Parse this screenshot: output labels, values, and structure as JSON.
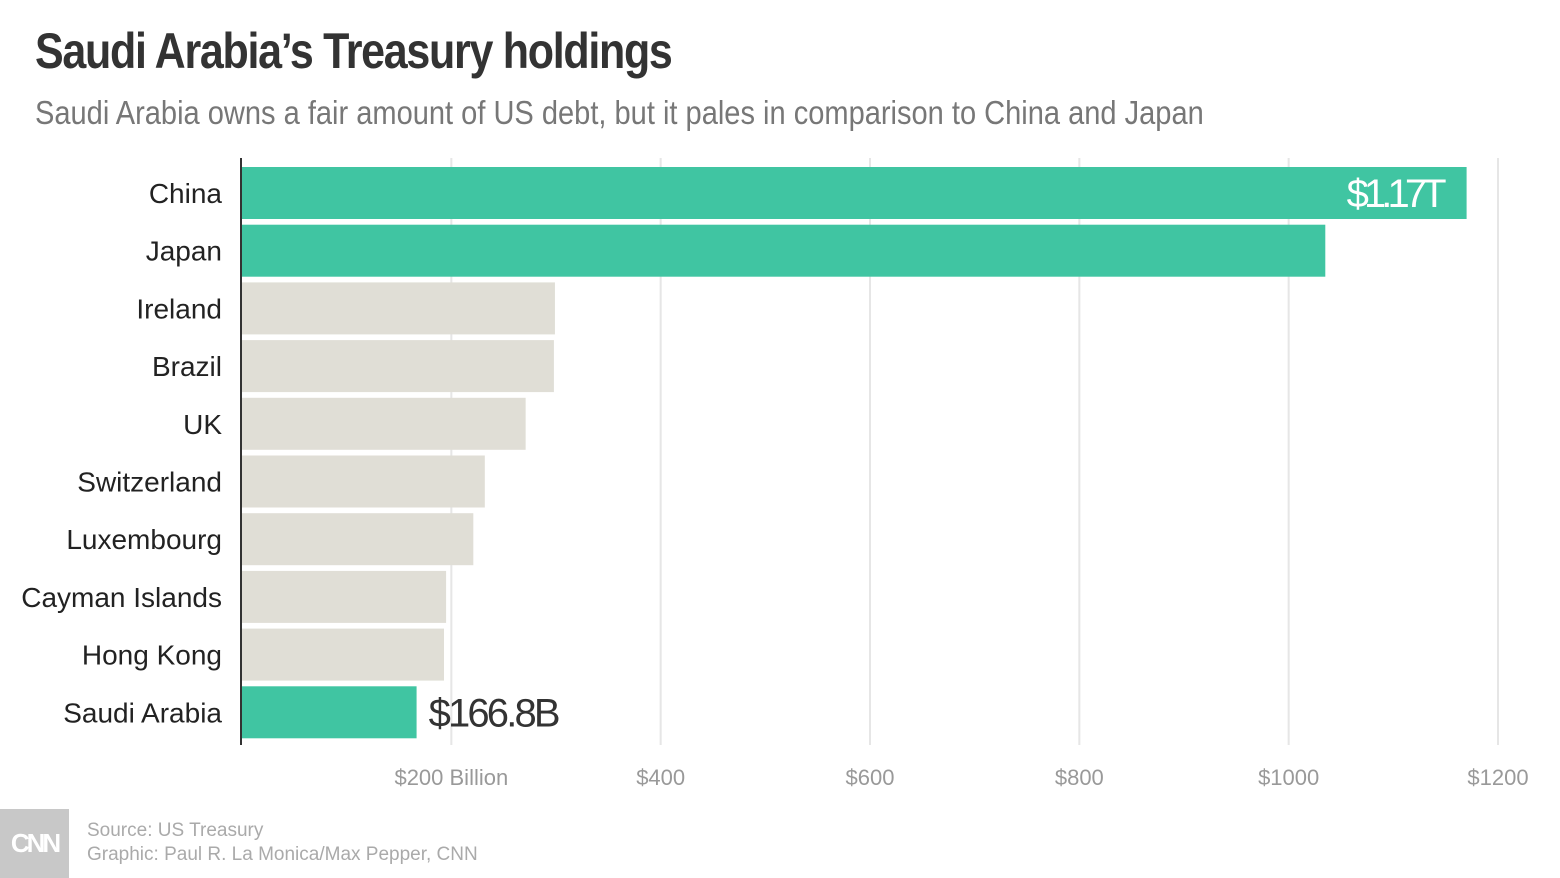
{
  "title": "Saudi Arabia’s Treasury holdings",
  "subtitle": "Saudi Arabia owns a fair amount of US debt, but it pales in comparison to China and Japan",
  "footer": {
    "logo": "CNN",
    "source": "Source: US Treasury",
    "credit": "Graphic: Paul R. La Monica/Max Pepper, CNN"
  },
  "colors": {
    "highlight": "#40c5a2",
    "other": "#e0ded6",
    "grid": "#e6e6e6",
    "axis": "#333333"
  },
  "chart_data": {
    "type": "bar",
    "orientation": "horizontal",
    "title": "Saudi Arabia’s Treasury holdings",
    "xlabel": "",
    "ylabel": "",
    "unit": "Billion USD",
    "xlim": [
      0,
      1200
    ],
    "grid": true,
    "categories": [
      "China",
      "Japan",
      "Ireland",
      "Brazil",
      "UK",
      "Switzerland",
      "Luxembourg",
      "Cayman Islands",
      "Hong Kong",
      "Saudi Arabia"
    ],
    "values": [
      1170,
      1035,
      299,
      298,
      271,
      232,
      221,
      195,
      193,
      166.8
    ],
    "highlighted": [
      true,
      true,
      false,
      false,
      false,
      false,
      false,
      false,
      false,
      true
    ],
    "ticks": [
      200,
      400,
      600,
      800,
      1000,
      1200
    ],
    "tick_labels": [
      "$200 Billion",
      "$400",
      "$600",
      "$800",
      "$1000",
      "$1200"
    ],
    "data_labels": [
      {
        "category": "China",
        "text": "$1.17T"
      },
      {
        "category": "Saudi Arabia",
        "text": "$166.8B"
      }
    ]
  }
}
